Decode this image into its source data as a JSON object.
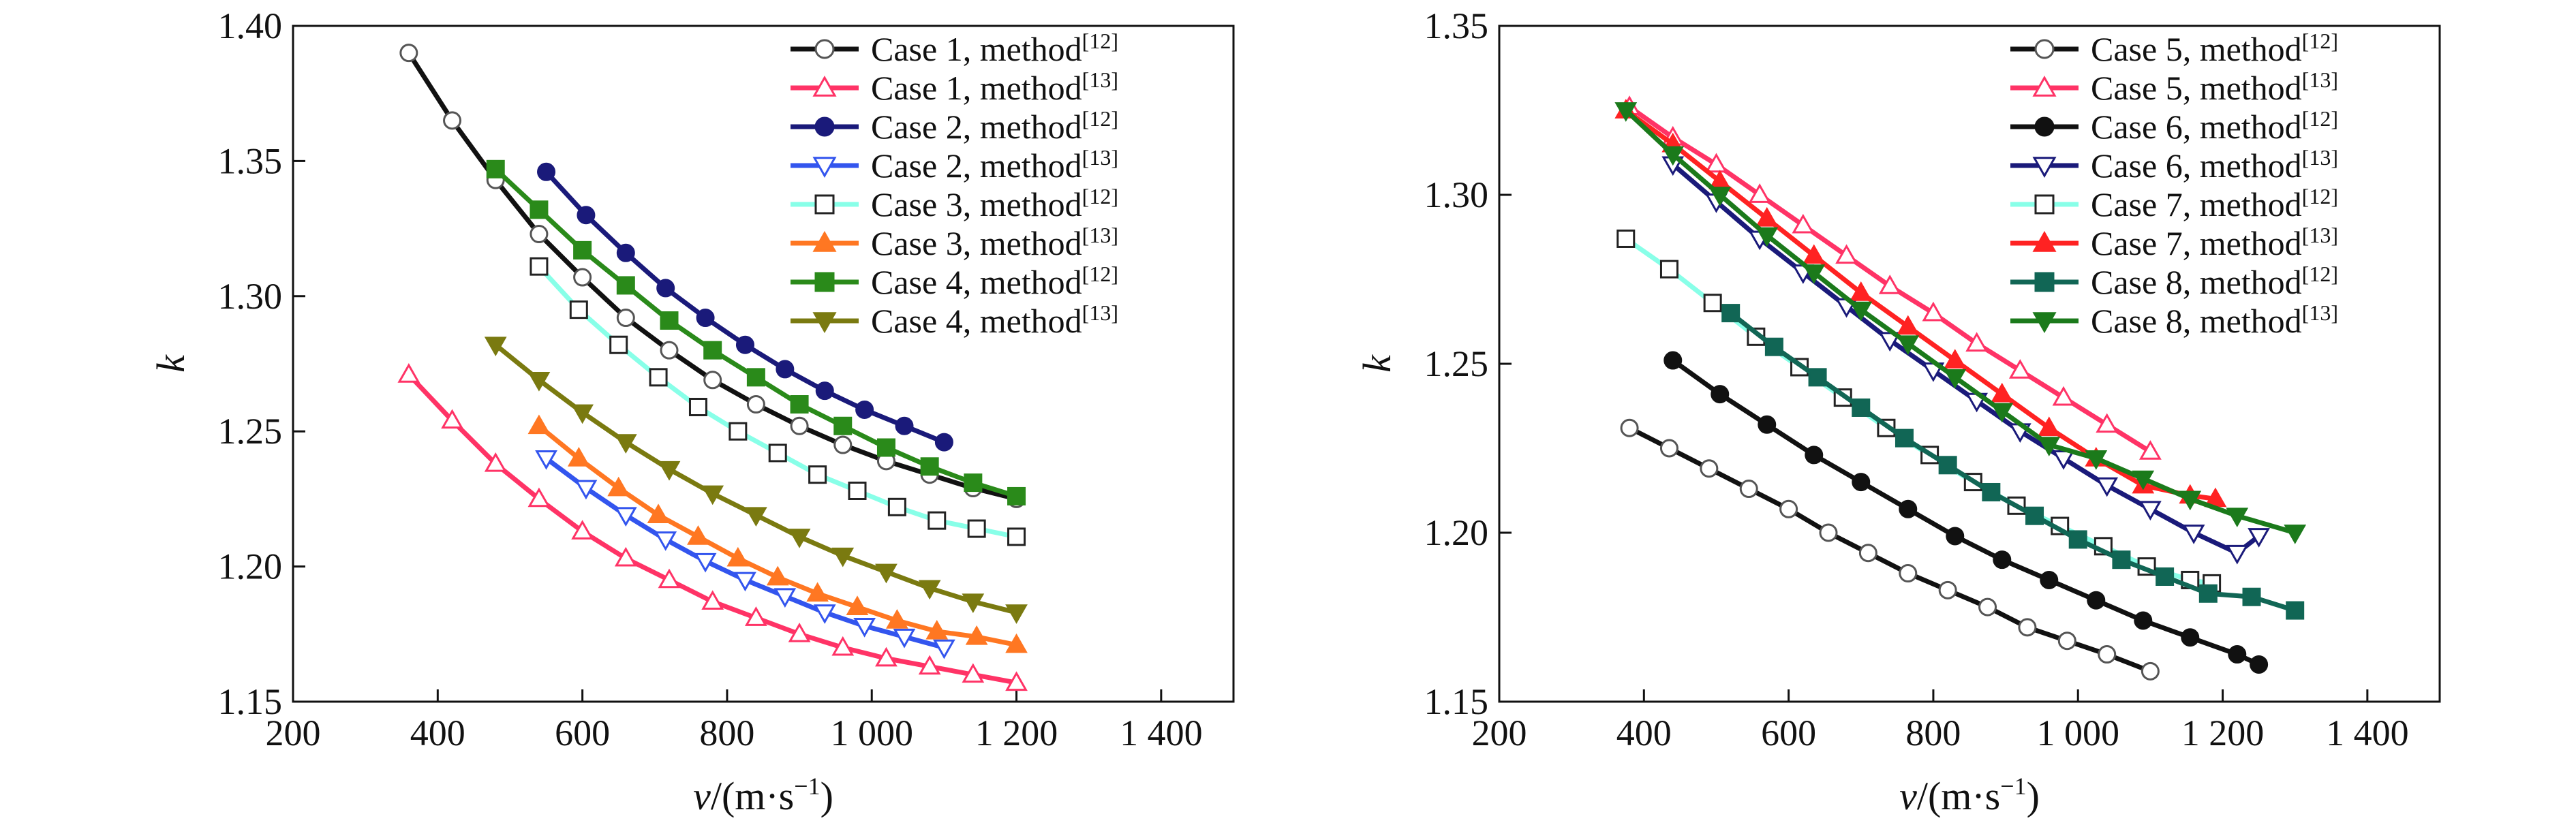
{
  "chart_data": [
    {
      "type": "line",
      "xlabel": {
        "var": "v",
        "unit_prefix": "/(m·s",
        "unit_exp": "−1",
        "unit_suffix": ")"
      },
      "ylabel": "k",
      "xlim": [
        200,
        1500
      ],
      "ylim": [
        1.15,
        1.4
      ],
      "xticks": [
        200,
        400,
        600,
        800,
        1000,
        1200,
        1400
      ],
      "xtick_labels": [
        "200",
        "400",
        "600",
        "800",
        "1 000",
        "1 200",
        "1 400"
      ],
      "yticks": [
        1.15,
        1.2,
        1.25,
        1.3,
        1.35,
        1.4
      ],
      "ytick_labels": [
        "1.15",
        "1.20",
        "1.25",
        "1.30",
        "1.35",
        "1.40"
      ],
      "grid": false,
      "legend_position": "top-right",
      "series": [
        {
          "name": "Case 1, method",
          "ref": "[12]",
          "color": "#111111",
          "marker": "circle-open",
          "x": [
            360,
            420,
            480,
            540,
            600,
            660,
            720,
            780,
            840,
            900,
            960,
            1020,
            1080,
            1140,
            1200
          ],
          "y": [
            1.39,
            1.365,
            1.343,
            1.323,
            1.307,
            1.292,
            1.28,
            1.269,
            1.26,
            1.252,
            1.245,
            1.239,
            1.234,
            1.229,
            1.225
          ]
        },
        {
          "name": "Case 1, method",
          "ref": "[13]",
          "color": "#ff3366",
          "marker": "triangle-up-open",
          "x": [
            360,
            420,
            480,
            540,
            600,
            660,
            720,
            780,
            840,
            900,
            960,
            1020,
            1080,
            1140,
            1200
          ],
          "y": [
            1.271,
            1.254,
            1.238,
            1.225,
            1.213,
            1.203,
            1.195,
            1.187,
            1.181,
            1.175,
            1.17,
            1.166,
            1.163,
            1.16,
            1.157
          ]
        },
        {
          "name": "Case 2, method",
          "ref": "[12]",
          "color": "#1a1a7a",
          "marker": "circle-filled",
          "x": [
            550,
            605,
            660,
            715,
            770,
            825,
            880,
            935,
            990,
            1045,
            1100
          ],
          "y": [
            1.346,
            1.33,
            1.316,
            1.303,
            1.292,
            1.282,
            1.273,
            1.265,
            1.258,
            1.252,
            1.246
          ]
        },
        {
          "name": "Case 2, method",
          "ref": "[13]",
          "color": "#3355ee",
          "marker": "triangle-down-open",
          "x": [
            550,
            605,
            660,
            715,
            770,
            825,
            880,
            935,
            990,
            1045,
            1100
          ],
          "y": [
            1.24,
            1.229,
            1.219,
            1.21,
            1.202,
            1.195,
            1.189,
            1.183,
            1.178,
            1.174,
            1.17
          ]
        },
        {
          "name": "Case 3, method",
          "ref": "[12]",
          "color": "#88ffe8",
          "marker": "square-open",
          "x": [
            540,
            595,
            650,
            705,
            760,
            815,
            870,
            925,
            980,
            1035,
            1090,
            1145,
            1200
          ],
          "y": [
            1.311,
            1.295,
            1.282,
            1.27,
            1.259,
            1.25,
            1.242,
            1.234,
            1.228,
            1.222,
            1.217,
            1.214,
            1.211
          ]
        },
        {
          "name": "Case 3, method",
          "ref": "[13]",
          "color": "#ff7722",
          "marker": "triangle-up-filled",
          "x": [
            540,
            595,
            650,
            705,
            760,
            815,
            870,
            925,
            980,
            1035,
            1090,
            1145,
            1200
          ],
          "y": [
            1.252,
            1.24,
            1.229,
            1.219,
            1.211,
            1.203,
            1.196,
            1.19,
            1.185,
            1.18,
            1.176,
            1.174,
            1.171
          ]
        },
        {
          "name": "Case 4, method",
          "ref": "[12]",
          "color": "#2a8a1a",
          "marker": "square-filled",
          "x": [
            480,
            540,
            600,
            660,
            720,
            780,
            840,
            900,
            960,
            1020,
            1080,
            1140,
            1200
          ],
          "y": [
            1.347,
            1.332,
            1.317,
            1.304,
            1.291,
            1.28,
            1.27,
            1.26,
            1.252,
            1.244,
            1.237,
            1.231,
            1.226
          ]
        },
        {
          "name": "Case 4, method",
          "ref": "[13]",
          "color": "#7a7a10",
          "marker": "triangle-down-filled",
          "x": [
            480,
            540,
            600,
            660,
            720,
            780,
            840,
            900,
            960,
            1020,
            1080,
            1140,
            1200
          ],
          "y": [
            1.282,
            1.269,
            1.257,
            1.246,
            1.236,
            1.227,
            1.219,
            1.211,
            1.204,
            1.198,
            1.192,
            1.187,
            1.183
          ]
        }
      ]
    },
    {
      "type": "line",
      "xlabel": {
        "var": "v",
        "unit_prefix": "/(m·s",
        "unit_exp": "−1",
        "unit_suffix": ")"
      },
      "ylabel": "k",
      "xlim": [
        200,
        1500
      ],
      "ylim": [
        1.15,
        1.35
      ],
      "xticks": [
        200,
        400,
        600,
        800,
        1000,
        1200,
        1400
      ],
      "xtick_labels": [
        "200",
        "400",
        "600",
        "800",
        "1 000",
        "1 200",
        "1 400"
      ],
      "yticks": [
        1.15,
        1.2,
        1.25,
        1.3,
        1.35
      ],
      "ytick_labels": [
        "1.15",
        "1.20",
        "1.25",
        "1.30",
        "1.35"
      ],
      "grid": false,
      "legend_position": "top-right",
      "series": [
        {
          "name": "Case 5, method",
          "ref": "[12]",
          "color": "#111111",
          "marker": "circle-open",
          "x": [
            380,
            435,
            490,
            545,
            600,
            655,
            710,
            765,
            820,
            875,
            930,
            985,
            1040,
            1100
          ],
          "y": [
            1.231,
            1.225,
            1.219,
            1.213,
            1.207,
            1.2,
            1.194,
            1.188,
            1.183,
            1.178,
            1.172,
            1.168,
            1.164,
            1.159
          ]
        },
        {
          "name": "Case 5, method",
          "ref": "[13]",
          "color": "#ff3366",
          "marker": "triangle-up-open",
          "x": [
            380,
            440,
            500,
            560,
            620,
            680,
            740,
            800,
            860,
            920,
            980,
            1040,
            1100
          ],
          "y": [
            1.326,
            1.317,
            1.309,
            1.3,
            1.291,
            1.282,
            1.273,
            1.265,
            1.256,
            1.248,
            1.24,
            1.232,
            1.224
          ]
        },
        {
          "name": "Case 6, method",
          "ref": "[12]",
          "color": "#111111",
          "marker": "circle-filled",
          "x": [
            440,
            505,
            570,
            635,
            700,
            765,
            830,
            895,
            960,
            1025,
            1090,
            1155,
            1220,
            1250
          ],
          "y": [
            1.251,
            1.241,
            1.232,
            1.223,
            1.215,
            1.207,
            1.199,
            1.192,
            1.186,
            1.18,
            1.174,
            1.169,
            1.164,
            1.161
          ]
        },
        {
          "name": "Case 6, method",
          "ref": "[13]",
          "color": "#1a1a7a",
          "marker": "triangle-down-open",
          "x": [
            440,
            500,
            560,
            620,
            680,
            740,
            800,
            860,
            920,
            980,
            1040,
            1100,
            1160,
            1220,
            1250
          ],
          "y": [
            1.309,
            1.298,
            1.287,
            1.277,
            1.267,
            1.257,
            1.248,
            1.239,
            1.23,
            1.222,
            1.214,
            1.207,
            1.2,
            1.194,
            1.199
          ]
        },
        {
          "name": "Case 7, method",
          "ref": "[12]",
          "color": "#88ffe8",
          "marker": "square-open",
          "x": [
            375,
            435,
            495,
            555,
            615,
            675,
            735,
            795,
            855,
            915,
            975,
            1035,
            1095,
            1155,
            1185
          ],
          "y": [
            1.287,
            1.278,
            1.268,
            1.258,
            1.249,
            1.24,
            1.231,
            1.223,
            1.215,
            1.208,
            1.202,
            1.196,
            1.19,
            1.186,
            1.185
          ]
        },
        {
          "name": "Case 7, method",
          "ref": "[13]",
          "color": "#ff2222",
          "marker": "triangle-up-filled",
          "x": [
            375,
            440,
            505,
            570,
            635,
            700,
            765,
            830,
            895,
            960,
            1025,
            1090,
            1155,
            1190
          ],
          "y": [
            1.325,
            1.315,
            1.304,
            1.293,
            1.282,
            1.271,
            1.261,
            1.251,
            1.241,
            1.231,
            1.222,
            1.214,
            1.211,
            1.21
          ]
        },
        {
          "name": "Case 8, method",
          "ref": "[12]",
          "color": "#116655",
          "marker": "square-filled",
          "x": [
            520,
            580,
            640,
            700,
            760,
            820,
            880,
            940,
            1000,
            1060,
            1120,
            1180,
            1240,
            1300
          ],
          "y": [
            1.265,
            1.255,
            1.246,
            1.237,
            1.228,
            1.22,
            1.212,
            1.205,
            1.198,
            1.192,
            1.187,
            1.182,
            1.181,
            1.177
          ]
        },
        {
          "name": "Case 8, method",
          "ref": "[13]",
          "color": "#1b7a1b",
          "marker": "triangle-down-filled",
          "x": [
            375,
            440,
            505,
            570,
            635,
            700,
            765,
            830,
            895,
            960,
            1025,
            1090,
            1155,
            1220,
            1300
          ],
          "y": [
            1.325,
            1.312,
            1.3,
            1.288,
            1.277,
            1.266,
            1.256,
            1.246,
            1.236,
            1.226,
            1.222,
            1.216,
            1.21,
            1.205,
            1.2
          ]
        }
      ]
    }
  ]
}
